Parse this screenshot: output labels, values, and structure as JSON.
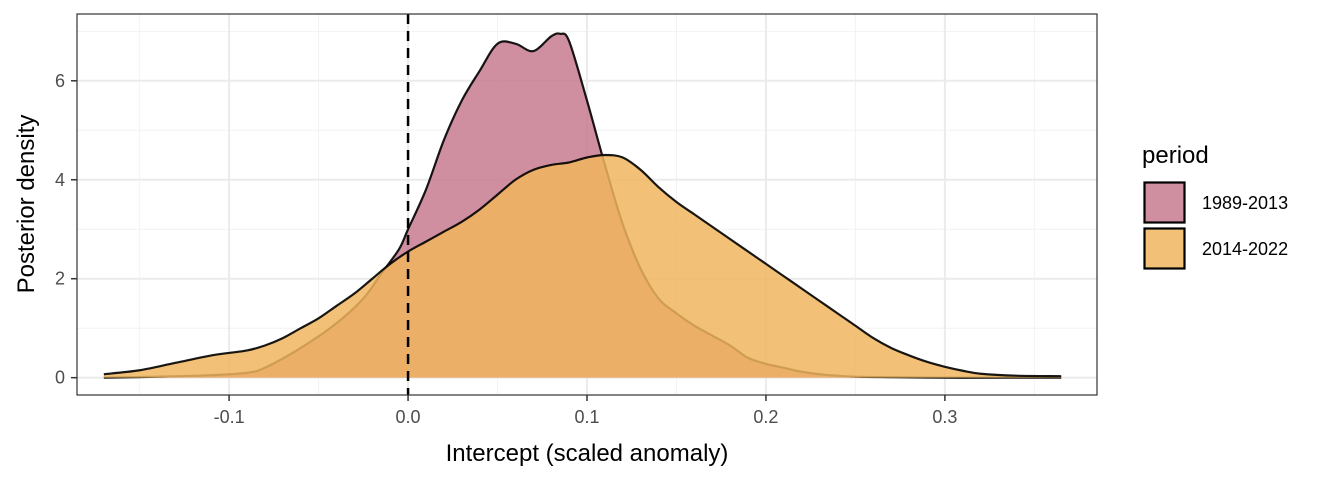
{
  "chart_data": {
    "type": "area",
    "title": "",
    "xlabel": "Intercept (scaled anomaly)",
    "ylabel": "Posterior density",
    "xlim": [
      -0.185,
      0.385
    ],
    "ylim": [
      -0.35,
      7.35
    ],
    "x_ticks": [
      -0.1,
      0.0,
      0.1,
      0.2,
      0.3
    ],
    "x_tick_labels": [
      "-0.1",
      "0.0",
      "0.1",
      "0.2",
      "0.3"
    ],
    "y_ticks": [
      0,
      2,
      4,
      6
    ],
    "y_tick_labels": [
      "0",
      "2",
      "4",
      "6"
    ],
    "grid": true,
    "reference_line": {
      "x": 0.0,
      "style": "dashed"
    },
    "legend": {
      "title": "period",
      "position": "right"
    },
    "series": [
      {
        "name": "1989-2013",
        "color": "#c77b8f",
        "x": [
          -0.17,
          -0.14,
          -0.11,
          -0.09,
          -0.08,
          -0.06,
          -0.04,
          -0.025,
          -0.015,
          -0.005,
          0.0,
          0.01,
          0.02,
          0.03,
          0.04,
          0.05,
          0.06,
          0.07,
          0.08,
          0.085,
          0.09,
          0.1,
          0.11,
          0.12,
          0.13,
          0.14,
          0.15,
          0.16,
          0.17,
          0.18,
          0.19,
          0.2,
          0.21,
          0.22,
          0.23,
          0.24,
          0.25,
          0.27,
          0.3,
          0.33,
          0.365
        ],
        "y": [
          0.0,
          0.02,
          0.05,
          0.1,
          0.2,
          0.6,
          1.1,
          1.6,
          2.1,
          2.6,
          3.0,
          3.8,
          4.8,
          5.6,
          6.2,
          6.75,
          6.75,
          6.6,
          6.9,
          6.95,
          6.8,
          5.6,
          4.3,
          3.1,
          2.2,
          1.6,
          1.3,
          1.05,
          0.85,
          0.65,
          0.4,
          0.28,
          0.2,
          0.12,
          0.07,
          0.04,
          0.02,
          0.01,
          0.0,
          0.0,
          0.0
        ]
      },
      {
        "name": "2014-2022",
        "color": "#f0b55e",
        "x": [
          -0.17,
          -0.15,
          -0.13,
          -0.11,
          -0.1,
          -0.09,
          -0.08,
          -0.07,
          -0.06,
          -0.05,
          -0.04,
          -0.03,
          -0.02,
          -0.01,
          0.0,
          0.01,
          0.02,
          0.03,
          0.04,
          0.05,
          0.06,
          0.07,
          0.08,
          0.09,
          0.1,
          0.11,
          0.12,
          0.13,
          0.14,
          0.15,
          0.16,
          0.17,
          0.18,
          0.19,
          0.2,
          0.21,
          0.22,
          0.23,
          0.24,
          0.25,
          0.26,
          0.27,
          0.28,
          0.29,
          0.3,
          0.31,
          0.32,
          0.34,
          0.365
        ],
        "y": [
          0.07,
          0.15,
          0.3,
          0.45,
          0.5,
          0.55,
          0.65,
          0.8,
          1.0,
          1.2,
          1.45,
          1.7,
          2.0,
          2.3,
          2.55,
          2.75,
          2.95,
          3.15,
          3.4,
          3.7,
          4.0,
          4.2,
          4.3,
          4.35,
          4.45,
          4.5,
          4.45,
          4.2,
          3.85,
          3.55,
          3.3,
          3.05,
          2.8,
          2.55,
          2.3,
          2.05,
          1.8,
          1.55,
          1.3,
          1.05,
          0.8,
          0.6,
          0.45,
          0.32,
          0.22,
          0.14,
          0.08,
          0.04,
          0.03
        ]
      }
    ]
  }
}
